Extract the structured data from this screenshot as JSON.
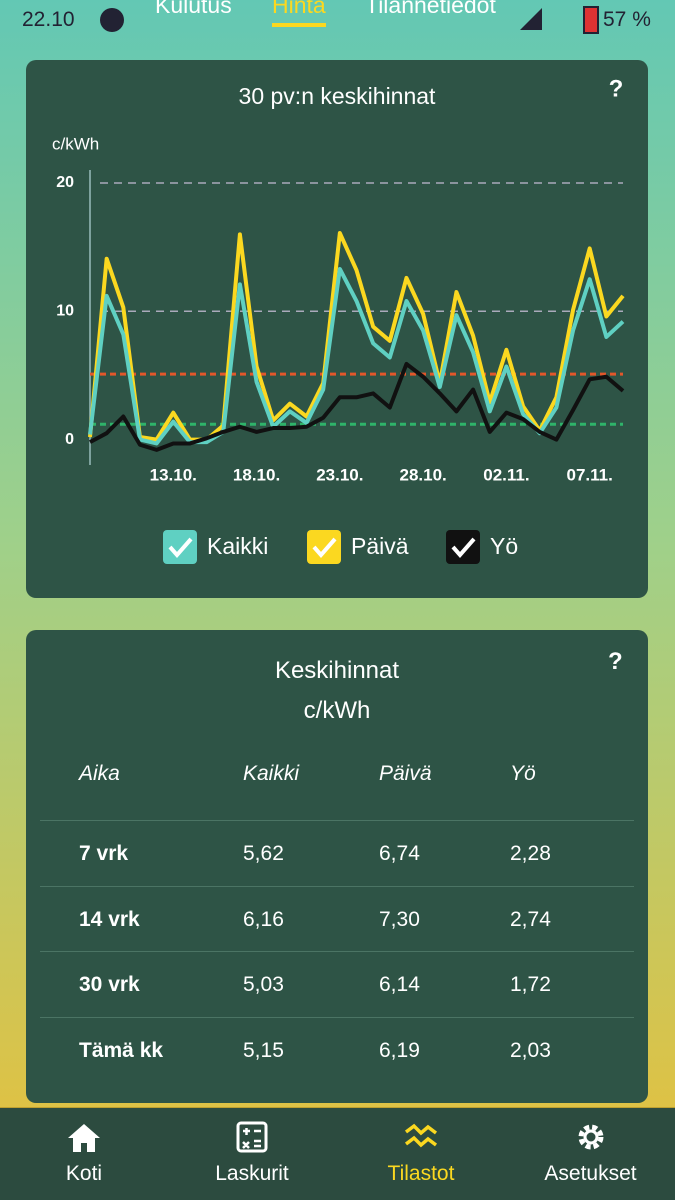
{
  "status_bar": {
    "time": "22.10",
    "battery": "57 %"
  },
  "tabs": [
    "Kulutus",
    "Hinta",
    "Tilannetiedot"
  ],
  "chart_card": {
    "help": "?"
  },
  "chart": {
    "type": "line",
    "title": "30 pv:n keskihinnat",
    "y_label": "c/kWh",
    "categories": [
      null,
      null,
      null,
      null,
      null,
      "13.10.",
      null,
      null,
      null,
      null,
      "18.10.",
      null,
      null,
      null,
      null,
      "23.10.",
      null,
      null,
      null,
      null,
      "28.10.",
      null,
      null,
      null,
      null,
      "02.11.",
      null,
      null,
      null,
      null,
      "07.11.",
      null,
      null
    ],
    "series": [
      {
        "name": "Kaikki",
        "color": "#5fd0c2",
        "values": [
          0.4,
          11.2,
          8.2,
          0.0,
          -0.3,
          1.4,
          -0.2,
          -0.2,
          0.6,
          12.1,
          4.5,
          1.0,
          2.2,
          1.3,
          3.9,
          13.3,
          10.8,
          7.5,
          6.4,
          10.8,
          8.5,
          4.1,
          9.7,
          6.8,
          2.2,
          5.7,
          2.0,
          0.5,
          2.5,
          8.5,
          12.5,
          8.0,
          9.2
        ]
      },
      {
        "name": "Päivä",
        "color": "#fbd820",
        "values": [
          0.2,
          14.1,
          10.3,
          0.2,
          0.0,
          2.1,
          0,
          0,
          1.1,
          16.0,
          5.7,
          1.5,
          2.8,
          1.8,
          4.4,
          16.1,
          13.2,
          8.8,
          7.7,
          12.6,
          9.8,
          4.4,
          11.5,
          8.1,
          2.9,
          7.0,
          2.6,
          0.7,
          3.3,
          10.1,
          14.9,
          9.6,
          11.2
        ]
      },
      {
        "name": "Yö",
        "color": "#111111",
        "values": [
          -0.2,
          0.5,
          1.8,
          -0.4,
          -0.8,
          -0.3,
          -0.3,
          0.1,
          0.6,
          1.0,
          0.6,
          0.9,
          0.9,
          1.0,
          1.7,
          3.3,
          3.3,
          3.6,
          2.5,
          5.9,
          4.9,
          3.6,
          2.2,
          3.9,
          0.6,
          2.1,
          1.6,
          0.6,
          0.0,
          2.3,
          4.7,
          4.9,
          3.8
        ]
      }
    ],
    "reference_lines": [
      {
        "value": 5.1,
        "color": "#e2572b"
      },
      {
        "value": 1.2,
        "color": "#2fb36a"
      }
    ],
    "ylim": [
      -1.2,
      20
    ],
    "yticks": [
      0,
      10,
      20
    ],
    "grid": true
  },
  "table_card": {
    "title": "Keskihinnat",
    "subtitle": "c/kWh",
    "help": "?",
    "columns": [
      "Aika",
      "Kaikki",
      "Päivä",
      "Yö"
    ],
    "rows": [
      [
        "7 vrk",
        "5,62",
        "6,74",
        "2,28"
      ],
      [
        "14 vrk",
        "6,16",
        "7,30",
        "2,74"
      ],
      [
        "30 vrk",
        "5,03",
        "6,14",
        "1,72"
      ],
      [
        "Tämä kk",
        "5,15",
        "6,19",
        "2,03"
      ]
    ]
  },
  "nav": [
    "Koti",
    "Laskurit",
    "Tilastot",
    "Asetukset"
  ]
}
